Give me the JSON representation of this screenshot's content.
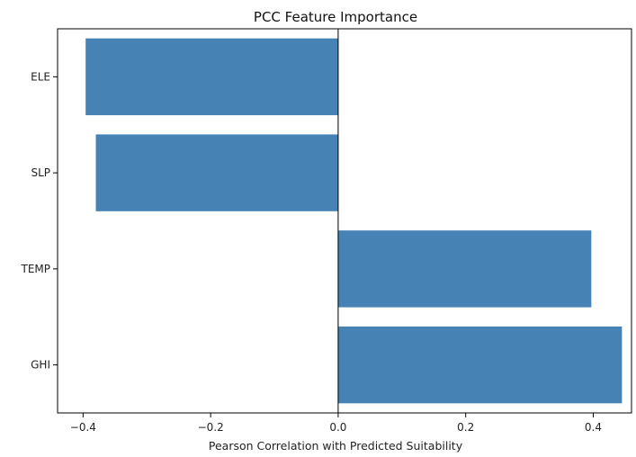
{
  "chart_data": {
    "type": "bar",
    "orientation": "horizontal",
    "title": "PCC Feature Importance",
    "xlabel": "Pearson Correlation with Predicted Suitability",
    "ylabel": "",
    "categories": [
      "ELE",
      "SLP",
      "TEMP",
      "GHI"
    ],
    "values": [
      -0.396,
      -0.38,
      0.397,
      0.445
    ],
    "xlim": [
      -0.44,
      0.46
    ],
    "xticks": [
      -0.4,
      -0.2,
      0.0,
      0.2,
      0.4
    ],
    "xtick_labels": [
      "−0.4",
      "−0.2",
      "0.0",
      "0.2",
      "0.4"
    ],
    "zero_line": true,
    "grid": false,
    "bar_color": "#4682b4"
  }
}
